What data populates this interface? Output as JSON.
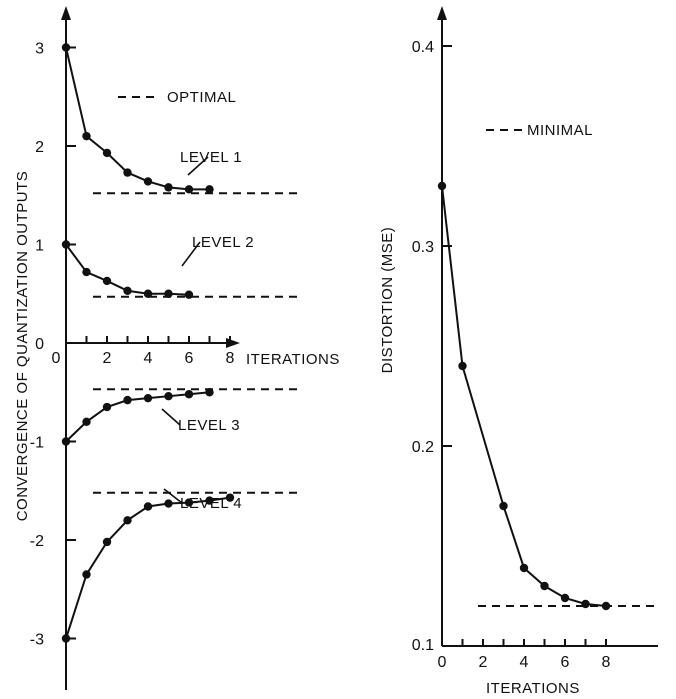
{
  "chart_data": [
    {
      "type": "line",
      "ylabel": "CONVERGENCE OF QUANTIZATION OUTPUTS",
      "xlabel": "ITERATIONS",
      "x_ticks": [
        "0",
        "2",
        "4",
        "6",
        "8"
      ],
      "y_ticks": [
        "3",
        "2",
        "1",
        "0",
        "-1",
        "-2",
        "-3"
      ],
      "xlim": [
        0,
        8
      ],
      "ylim": [
        -3,
        3
      ],
      "grid": false,
      "legend": "OPTIMAL",
      "legend_line_style": "dashed",
      "series": [
        {
          "name": "LEVEL 1",
          "x": [
            0,
            1,
            2,
            3,
            4,
            5,
            6,
            7
          ],
          "y": [
            3.0,
            2.1,
            1.93,
            1.73,
            1.64,
            1.58,
            1.56,
            1.56
          ]
        },
        {
          "name": "LEVEL 2",
          "x": [
            0,
            1,
            2,
            3,
            4,
            5,
            6
          ],
          "y": [
            1.0,
            0.72,
            0.63,
            0.53,
            0.5,
            0.5,
            0.49
          ]
        },
        {
          "name": "LEVEL 3",
          "x": [
            0,
            1,
            2,
            3,
            4,
            5,
            6,
            7
          ],
          "y": [
            -1.0,
            -0.8,
            -0.65,
            -0.58,
            -0.56,
            -0.54,
            -0.52,
            -0.5
          ]
        },
        {
          "name": "LEVEL 4",
          "x": [
            0,
            1,
            2,
            3,
            4,
            5,
            6,
            7,
            8
          ],
          "y": [
            -3.0,
            -2.35,
            -2.02,
            -1.8,
            -1.66,
            -1.63,
            -1.62,
            -1.6,
            -1.57
          ]
        }
      ],
      "optimal_values": [
        1.52,
        0.47,
        -0.47,
        -1.52
      ]
    },
    {
      "type": "line",
      "ylabel": "DISTORTION (MSE)",
      "xlabel": "ITERATIONS",
      "x_ticks": [
        "0",
        "2",
        "4",
        "6",
        "8"
      ],
      "y_ticks": [
        "0.4",
        "0.3",
        "0.2",
        "0.1"
      ],
      "xlim": [
        0,
        8
      ],
      "ylim": [
        0.1,
        0.4
      ],
      "grid": false,
      "legend": "MINIMAL",
      "legend_line_style": "dashed",
      "series": [
        {
          "x": [
            0,
            1,
            3,
            4,
            5,
            6,
            7,
            8
          ],
          "y": [
            0.33,
            0.24,
            0.17,
            0.139,
            0.13,
            0.124,
            0.121,
            0.12
          ]
        }
      ],
      "minimal_value": 0.12
    }
  ]
}
